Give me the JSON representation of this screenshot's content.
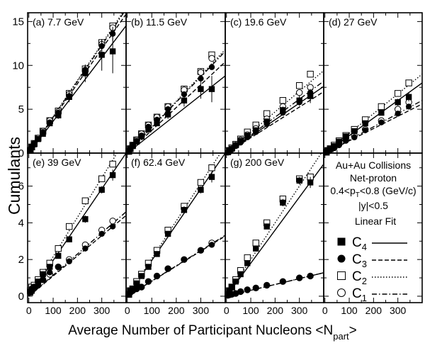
{
  "figure": {
    "ylabel": "Cumulants",
    "xlabel": "Average Number of Participant Nucleons <N",
    "xlabel_sub": "part",
    "xlabel_end": ">",
    "legend_header": "Linear  Fit"
  },
  "info": {
    "line1": "Au+Au Collisions",
    "line2": "Net-proton",
    "line3_a": "0.4<p",
    "line3_sub": "T",
    "line3_b": "<0.8 (GeV/c)",
    "line4": "|y|<0.5"
  },
  "legend": [
    {
      "name": "C",
      "sub": "4",
      "marker": "filled-square",
      "fit": "solid"
    },
    {
      "name": "C",
      "sub": "3",
      "marker": "filled-circle",
      "fit": "dashed"
    },
    {
      "name": "C",
      "sub": "2",
      "marker": "open-square",
      "fit": "dotted"
    },
    {
      "name": "C",
      "sub": "1",
      "marker": "open-circle",
      "fit": "dashdot"
    }
  ],
  "colors": {
    "axis": "#000000",
    "marker": "#000000"
  },
  "chart_data": {
    "type": "scatter",
    "x": [
      6,
      12,
      22,
      38,
      58,
      86,
      121,
      166,
      232,
      300,
      345
    ],
    "x_ticks": [
      0,
      100,
      200,
      300
    ],
    "rows": [
      {
        "ylim": [
          0,
          16
        ],
        "y_ticks": [
          0,
          5,
          10,
          15
        ]
      },
      {
        "ylim": [
          -0.35,
          7.8
        ],
        "y_ticks": [
          0,
          2,
          4,
          6
        ]
      }
    ],
    "xlim": [
      -5,
      400
    ],
    "panels": [
      {
        "label": "(a) 7.7 GeV",
        "row": 0,
        "col": 0,
        "series": [
          {
            "kind": "C4",
            "values": [
              0.3,
              0.7,
              1.0,
              1.6,
              2.2,
              3.4,
              4.3,
              6.4,
              9.1,
              11.2,
              11.6
            ],
            "errors": [
              0.1,
              0.1,
              0.1,
              0.2,
              0.2,
              0.3,
              0.4,
              0.6,
              1.0,
              1.8,
              2.5
            ],
            "fit": [
              0.0,
              0.0363
            ]
          },
          {
            "kind": "C3",
            "values": [
              0.3,
              0.7,
              1.1,
              1.6,
              2.4,
              3.5,
              4.6,
              6.5,
              9.5,
              12.2,
              13.6
            ],
            "errors": [
              0.1,
              0.1,
              0.1,
              0.1,
              0.1,
              0.2,
              0.3,
              0.3,
              0.5,
              0.6,
              0.8
            ],
            "fit": [
              0.0,
              0.0396
            ]
          },
          {
            "kind": "C2",
            "values": [
              0.3,
              0.7,
              1.1,
              1.7,
              2.5,
              3.7,
              4.8,
              6.8,
              9.6,
              12.6,
              14.5
            ],
            "errors": [],
            "fit": [
              0.0,
              0.0415
            ]
          },
          {
            "kind": "C1",
            "values": [
              0.3,
              0.7,
              1.1,
              1.7,
              2.5,
              3.7,
              4.7,
              6.7,
              9.4,
              12.4,
              14.3
            ],
            "errors": [],
            "fit": [
              0.0,
              0.041
            ]
          }
        ]
      },
      {
        "label": "(b) 11.5 GeV",
        "row": 0,
        "col": 1,
        "series": [
          {
            "kind": "C4",
            "values": [
              0.2,
              0.5,
              0.8,
              1.3,
              1.9,
              2.7,
              3.4,
              4.4,
              6.0,
              7.3,
              7.3
            ],
            "errors": [
              0.1,
              0.1,
              0.1,
              0.1,
              0.2,
              0.2,
              0.3,
              0.5,
              0.7,
              1.1,
              1.5
            ],
            "fit": [
              0.0,
              0.022
            ]
          },
          {
            "kind": "C3",
            "values": [
              0.2,
              0.5,
              0.9,
              1.4,
              2.0,
              3.0,
              3.8,
              5.0,
              6.7,
              8.5,
              9.8
            ],
            "errors": [],
            "fit": [
              0.0,
              0.026
            ]
          },
          {
            "kind": "C2",
            "values": [
              0.2,
              0.5,
              0.9,
              1.5,
              2.2,
              3.2,
              4.1,
              5.3,
              7.3,
              9.3,
              11.2
            ],
            "errors": [],
            "fit": [
              0.0,
              0.0295
            ]
          },
          {
            "kind": "C1",
            "values": [
              0.2,
              0.5,
              0.9,
              1.5,
              2.2,
              3.2,
              4.1,
              5.3,
              7.2,
              9.2,
              10.8
            ],
            "errors": [],
            "fit": [
              0.0,
              0.029
            ]
          }
        ]
      },
      {
        "label": "(c) 19.6 GeV",
        "row": 0,
        "col": 2,
        "series": [
          {
            "kind": "C4",
            "values": [
              0.1,
              0.3,
              0.5,
              0.9,
              1.4,
              2.0,
              2.6,
              3.6,
              4.9,
              6.0,
              6.5
            ],
            "errors": [
              0.1,
              0.1,
              0.1,
              0.1,
              0.1,
              0.2,
              0.2,
              0.3,
              0.4,
              0.6,
              0.8
            ],
            "fit": [
              0.0,
              0.019
            ]
          },
          {
            "kind": "C3",
            "values": [
              0.1,
              0.2,
              0.4,
              0.8,
              1.2,
              1.8,
              2.4,
              3.3,
              4.6,
              5.8,
              6.9
            ],
            "errors": [],
            "fit": [
              0.0,
              0.0175
            ]
          },
          {
            "kind": "C2",
            "values": [
              0.2,
              0.3,
              0.6,
              1.0,
              1.6,
              2.4,
              3.2,
              4.5,
              6.0,
              7.7,
              9.0
            ],
            "errors": [],
            "fit": [
              0.0,
              0.0235
            ]
          },
          {
            "kind": "C1",
            "values": [
              0.1,
              0.3,
              0.5,
              0.9,
              1.5,
              2.1,
              2.8,
              3.9,
              5.3,
              6.9,
              7.5
            ],
            "errors": [],
            "fit": [
              0.0,
              0.0205
            ]
          }
        ]
      },
      {
        "label": "(d) 27 GeV",
        "row": 0,
        "col": 3,
        "series": [
          {
            "kind": "C4",
            "values": [
              0.1,
              0.3,
              0.5,
              0.8,
              1.3,
              1.9,
              2.5,
              3.4,
              4.6,
              5.8,
              6.4
            ],
            "errors": [
              0.1,
              0.1,
              0.1,
              0.1,
              0.1,
              0.1,
              0.2,
              0.2,
              0.3,
              0.4,
              0.5
            ],
            "fit": [
              0.0,
              0.02
            ]
          },
          {
            "kind": "C3",
            "values": [
              0.1,
              0.2,
              0.4,
              0.6,
              0.9,
              1.4,
              1.8,
              2.6,
              3.5,
              4.5,
              5.3
            ],
            "errors": [],
            "fit": [
              0.0,
              0.014
            ]
          },
          {
            "kind": "C2",
            "values": [
              0.1,
              0.3,
              0.5,
              0.9,
              1.4,
              2.0,
              2.7,
              3.8,
              5.3,
              6.8,
              8.0
            ],
            "errors": [],
            "fit": [
              0.0,
              0.0225
            ]
          },
          {
            "kind": "C1",
            "values": [
              0.1,
              0.2,
              0.4,
              0.6,
              1.0,
              1.5,
              2.0,
              2.7,
              3.7,
              5.0,
              5.8
            ],
            "errors": [],
            "fit": [
              0.0,
              0.015
            ]
          }
        ]
      },
      {
        "label": "(e) 39 GeV",
        "row": 1,
        "col": 0,
        "series": [
          {
            "kind": "C4",
            "values": [
              0.2,
              0.3,
              0.5,
              0.8,
              1.2,
              1.6,
              2.2,
              3.1,
              4.2,
              5.8,
              6.6
            ],
            "errors": [
              0.05,
              0.05,
              0.05,
              0.05,
              0.1,
              0.1,
              0.1,
              0.15,
              0.2,
              0.2,
              0.3
            ],
            "fit": [
              0.0,
              0.0195
            ]
          },
          {
            "kind": "C3",
            "values": [
              0.3,
              0.4,
              0.5,
              0.6,
              0.9,
              1.3,
              1.6,
              1.9,
              2.6,
              3.4,
              3.8
            ],
            "errors": [],
            "fit": [
              0.0,
              0.011
            ]
          },
          {
            "kind": "C2",
            "values": [
              0.3,
              0.5,
              0.6,
              0.9,
              1.3,
              1.8,
              2.6,
              3.8,
              5.2,
              6.4,
              7.2
            ],
            "errors": [],
            "fit": [
              0.0,
              0.0215
            ]
          },
          {
            "kind": "C1",
            "values": [
              0.3,
              0.4,
              0.5,
              0.6,
              0.9,
              1.2,
              1.6,
              2.0,
              2.8,
              3.6,
              4.1
            ],
            "errors": [],
            "fit": [
              0.0,
              0.0115
            ]
          }
        ]
      },
      {
        "label": "(f) 62.4 GeV",
        "row": 1,
        "col": 1,
        "series": [
          {
            "kind": "C4",
            "values": [
              0.1,
              0.3,
              0.4,
              0.7,
              1.1,
              1.6,
              2.3,
              3.4,
              4.7,
              5.8,
              6.5
            ],
            "errors": [
              0.05,
              0.05,
              0.05,
              0.05,
              0.1,
              0.1,
              0.1,
              0.15,
              0.2,
              0.2,
              0.3
            ],
            "fit": [
              0.0,
              0.0195
            ]
          },
          {
            "kind": "C3",
            "values": [
              0.1,
              0.2,
              0.3,
              0.4,
              0.5,
              0.8,
              1.1,
              1.5,
              2.0,
              2.5,
              2.8
            ],
            "errors": [],
            "fit": [
              0.0,
              0.0082
            ]
          },
          {
            "kind": "C2",
            "values": [
              0.1,
              0.3,
              0.4,
              0.8,
              1.2,
              1.8,
              2.5,
              3.6,
              4.9,
              6.2,
              7.0
            ],
            "errors": [],
            "fit": [
              0.0,
              0.0205
            ]
          },
          {
            "kind": "C1",
            "values": [
              0.1,
              0.2,
              0.3,
              0.4,
              0.5,
              0.8,
              1.1,
              1.5,
              2.0,
              2.5,
              2.9
            ],
            "errors": [],
            "fit": [
              0.0,
              0.0083
            ]
          }
        ]
      },
      {
        "label": "(g) 200 GeV",
        "row": 1,
        "col": 2,
        "series": [
          {
            "kind": "C4",
            "values": [
              0.1,
              0.3,
              0.5,
              0.8,
              1.2,
              1.8,
              2.6,
              3.8,
              5.1,
              6.3,
              6.2
            ],
            "errors": [
              0.05,
              0.05,
              0.05,
              0.05,
              0.1,
              0.1,
              0.1,
              0.15,
              0.2,
              0.2,
              0.3
            ],
            "fit": [
              0.0,
              0.018
            ]
          },
          {
            "kind": "C3",
            "values": [
              0.05,
              0.08,
              0.1,
              0.15,
              0.25,
              0.35,
              0.45,
              0.6,
              0.8,
              1.0,
              1.1
            ],
            "errors": [],
            "fit": [
              0.0,
              0.0032
            ]
          },
          {
            "kind": "C2",
            "values": [
              0.1,
              0.3,
              0.5,
              0.9,
              1.4,
              2.1,
              2.9,
              4.0,
              5.3,
              6.4,
              6.5
            ],
            "errors": [],
            "fit": [
              0.0,
              0.02
            ]
          },
          {
            "kind": "C1",
            "values": [
              0.05,
              0.08,
              0.1,
              0.15,
              0.25,
              0.35,
              0.45,
              0.6,
              0.8,
              1.0,
              1.1
            ],
            "errors": [],
            "fit": [
              0.0,
              0.0032
            ]
          }
        ]
      }
    ]
  }
}
